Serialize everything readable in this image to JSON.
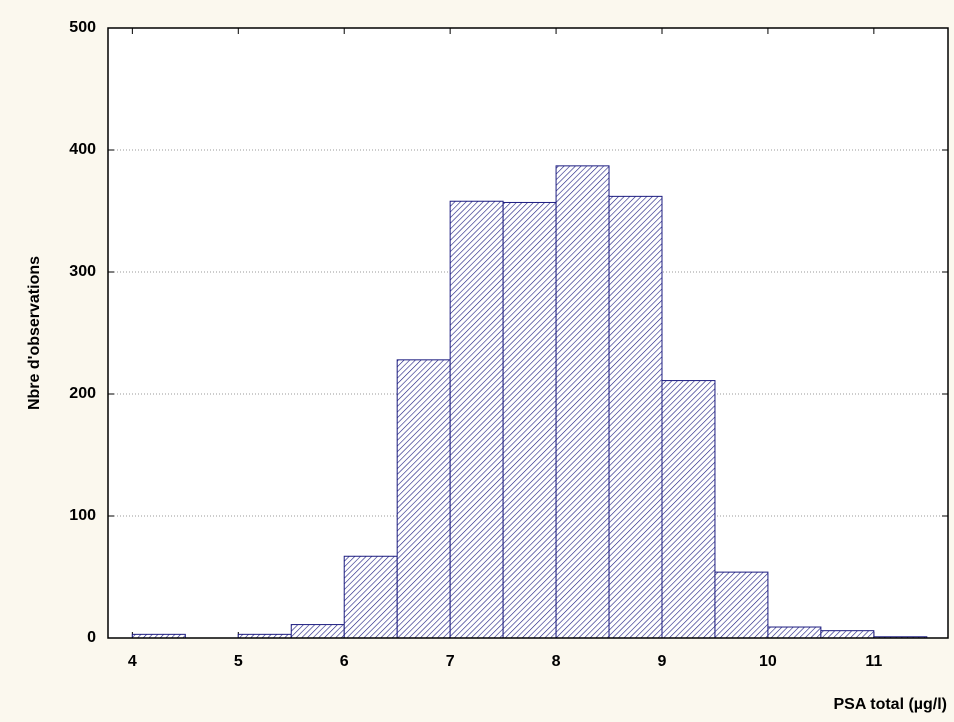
{
  "chart_data": {
    "type": "histogram",
    "x_label": "PSA total (µg/l)",
    "y_label": "Nbre d'observations",
    "bins": [
      4,
      4.5,
      5,
      5.5,
      6,
      6.5,
      7,
      7.5,
      8,
      8.5,
      9,
      9.5,
      10,
      10.5,
      11,
      11.5
    ],
    "values": [
      3,
      0,
      3,
      11,
      67,
      228,
      358,
      357,
      387,
      362,
      211,
      54,
      9,
      6,
      1
    ],
    "color": "#1c1c80",
    "xlim": [
      3.77,
      11.7
    ],
    "xticks": [
      4,
      5,
      6,
      7,
      8,
      9,
      10,
      11
    ],
    "ylim": [
      0,
      500
    ],
    "yticks": [
      0,
      100,
      200,
      300,
      400,
      500
    ],
    "grid": true
  }
}
